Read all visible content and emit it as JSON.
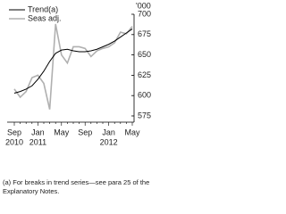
{
  "chart_data": {
    "type": "line",
    "y_unit": "'000",
    "categories": [
      "Sep",
      null,
      null,
      null,
      "Jan",
      null,
      null,
      null,
      "May",
      null,
      null,
      null,
      "Sep",
      null,
      null,
      null,
      "Jan",
      null,
      null,
      null,
      "May"
    ],
    "years": [
      "2010",
      null,
      null,
      null,
      "2011",
      null,
      null,
      null,
      null,
      null,
      null,
      null,
      null,
      null,
      null,
      null,
      "2012",
      null,
      null,
      null,
      null
    ],
    "series": [
      {
        "name": "Trend(a)",
        "color": "#000000",
        "values": [
          603,
          605,
          608,
          612,
          620,
          630,
          642,
          652,
          656,
          657,
          655,
          654,
          654,
          655,
          657,
          660,
          663,
          667,
          672,
          677,
          682
        ]
      },
      {
        "name": "Seas adj.",
        "color": "#b0b0b0",
        "values": [
          608,
          598,
          605,
          622,
          625,
          615,
          583,
          688,
          650,
          640,
          660,
          660,
          658,
          648,
          655,
          658,
          660,
          665,
          678,
          676,
          685
        ]
      }
    ],
    "ylim": [
      575,
      700
    ],
    "yticks": [
      575,
      600,
      625,
      650,
      675,
      700
    ],
    "note": "(a) For breaks in trend series—see para 25 of the Explanatory Notes."
  }
}
